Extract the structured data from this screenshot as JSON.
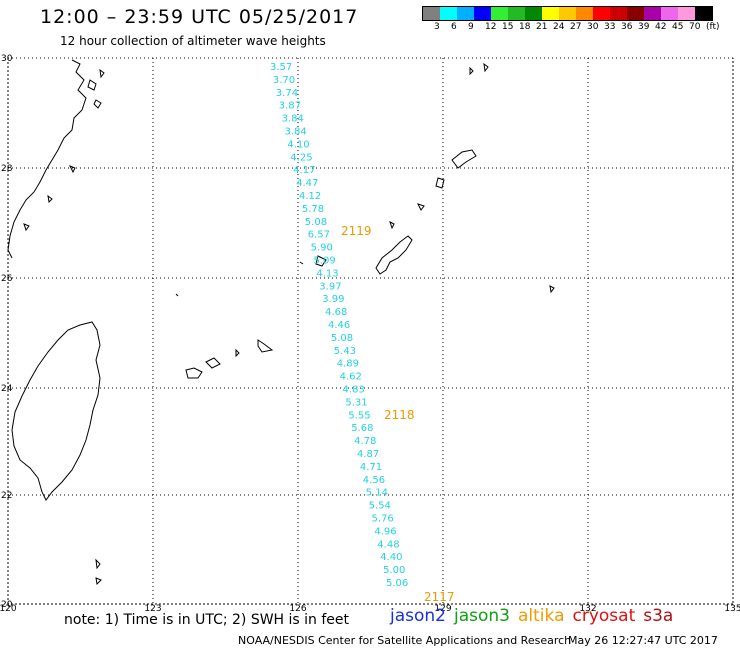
{
  "title": "12:00 – 23:59 UTC 05/25/2017",
  "subtitle": "12 hour collection of altimeter wave heights",
  "legend": {
    "colors": [
      "#808080",
      "#00ffff",
      "#00b0ff",
      "#0000ff",
      "#33ee33",
      "#22bb22",
      "#008800",
      "#ffff00",
      "#ffc800",
      "#ff8800",
      "#ff0000",
      "#cc0000",
      "#880000",
      "#aa00aa",
      "#ee66ee",
      "#ff99dd",
      "#000000"
    ],
    "labels": [
      "3",
      "6",
      "9",
      "12",
      "15",
      "18",
      "21",
      "24",
      "27",
      "30",
      "33",
      "36",
      "39",
      "42",
      "45",
      "70",
      "(ft)"
    ]
  },
  "map": {
    "lat_labels": [
      "30",
      "28",
      "26",
      "24",
      "22",
      "20"
    ],
    "lon_labels": [
      "120",
      "123",
      "126",
      "129",
      "132",
      "135"
    ]
  },
  "wave_heights": {
    "color": "#22d3e0",
    "values": [
      "3.57",
      "3.70",
      "3.74",
      "3.87",
      "3.84",
      "3.84",
      "4.10",
      "4.25",
      "4.17",
      "4.47",
      "4.12",
      "5.78",
      "5.08",
      "6.57",
      "5.90",
      "5.09",
      "4.13",
      "3.97",
      "3.99",
      "4.68",
      "4.46",
      "5.08",
      "5.43",
      "4.89",
      "4.62",
      "4.83",
      "5.31",
      "5.55",
      "5.68",
      "4.78",
      "4.87",
      "4.71",
      "4.56",
      "5.14",
      "5.54",
      "5.76",
      "4.96",
      "4.48",
      "4.40",
      "5.00",
      "5.06"
    ]
  },
  "pass_labels": {
    "color": "#ee9900",
    "items": [
      "2119",
      "2118",
      "2117"
    ]
  },
  "note": "note: 1) Time is in UTC; 2) SWH is in feet",
  "satellites": [
    {
      "name": "jason2",
      "color": "#1530e0"
    },
    {
      "name": "jason3",
      "color": "#10a010"
    },
    {
      "name": "altika",
      "color": "#f39a00"
    },
    {
      "name": "cryosat",
      "color": "#e01010"
    },
    {
      "name": "s3a",
      "color": "#b01010"
    }
  ],
  "footer": {
    "credit": "NOAA/NESDIS Center for Satellite Applications and Research",
    "timestamp": "May 26 12:27:47 UTC 2017"
  }
}
